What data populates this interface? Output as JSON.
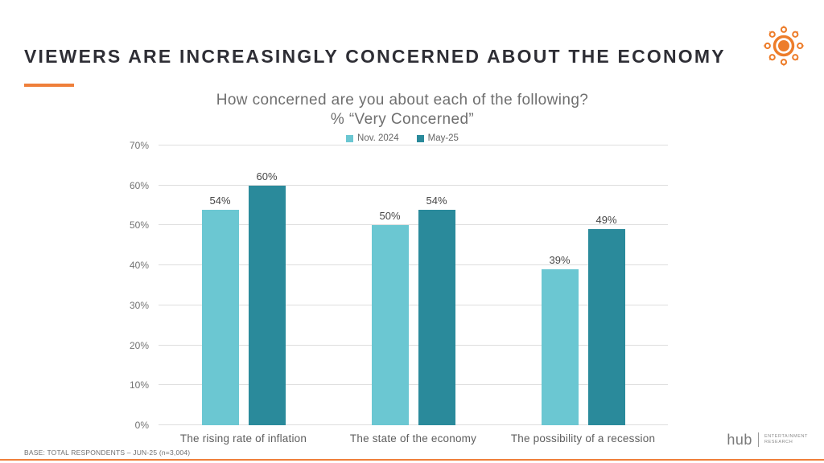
{
  "slide": {
    "title": "VIEWERS ARE INCREASINGLY CONCERNED ABOUT THE ECONOMY",
    "footer_base": "BASE: TOTAL RESPONDENTS – JUN-25 (n=3,004)",
    "brand": {
      "name": "hub",
      "tagline_line1": "ENTERTAINMENT",
      "tagline_line2": "RESEARCH"
    }
  },
  "colors": {
    "accent_orange": "#EF7F3A",
    "logo_orange": "#ED7D2B",
    "series_light": "#6BC7D2",
    "series_dark": "#2A8A9B",
    "title_text": "#2E2E35",
    "chart_text": "#6F6F6F",
    "gridline": "#DEDEDE"
  },
  "chart_data": {
    "type": "bar",
    "title": "How concerned are you about each of the following?",
    "subtitle": "% “Very Concerned”",
    "categories": [
      "The rising rate of inflation",
      "The state of the economy",
      "The possibility of a recession"
    ],
    "series": [
      {
        "name": "Nov. 2024",
        "color": "#6BC7D2",
        "values": [
          54,
          50,
          39
        ]
      },
      {
        "name": "May-25",
        "color": "#2A8A9B",
        "values": [
          60,
          54,
          49
        ]
      }
    ],
    "value_suffix": "%",
    "ylim": [
      0,
      70
    ],
    "ytick_step": 10,
    "yticks": [
      "0%",
      "10%",
      "20%",
      "30%",
      "40%",
      "50%",
      "60%",
      "70%"
    ],
    "grid": true,
    "legend_position": "top",
    "data_labels": true
  }
}
